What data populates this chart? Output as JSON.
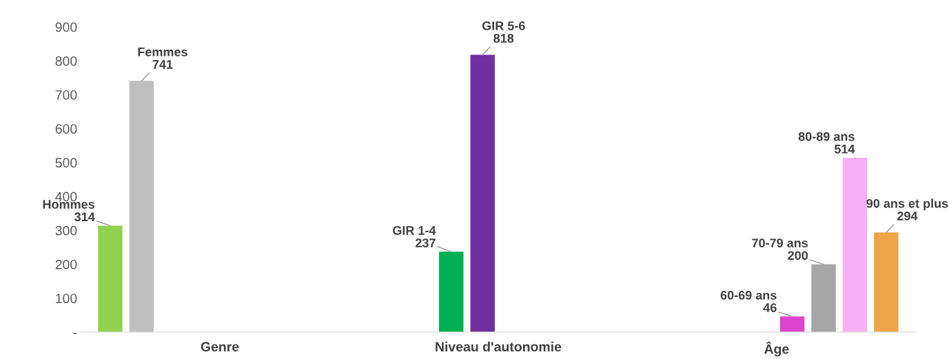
{
  "chart_data": {
    "type": "bar",
    "categories": [
      "Genre",
      "Niveau d'autonomie",
      "Âge"
    ],
    "series": [
      {
        "name": "Hommes",
        "color": "#92d050",
        "values": [
          314,
          null,
          null
        ]
      },
      {
        "name": "Femmes",
        "color": "#bfbfbf",
        "values": [
          741,
          null,
          null
        ]
      },
      {
        "name": "GIR 1-4",
        "color": "#00b050",
        "values": [
          null,
          237,
          null
        ]
      },
      {
        "name": "GIR 5-6",
        "color": "#7030a0",
        "values": [
          null,
          818,
          null
        ]
      },
      {
        "name": "60-69 ans",
        "color": "#dc44cc",
        "values": [
          null,
          null,
          46
        ]
      },
      {
        "name": "70-79 ans",
        "color": "#a6a6a6",
        "values": [
          null,
          null,
          200
        ]
      },
      {
        "name": "80-89 ans",
        "color": "#f8b0f4",
        "values": [
          null,
          null,
          514
        ]
      },
      {
        "name": "90 ans et plus",
        "color": "#eda548",
        "values": [
          null,
          null,
          294
        ]
      }
    ],
    "ylim": [
      0,
      900
    ],
    "yticks": [
      {
        "value": 0,
        "label": "-"
      },
      100,
      200,
      300,
      400,
      500,
      600,
      700,
      800,
      900
    ],
    "data_labels": true,
    "grid": false,
    "legend": false
  }
}
